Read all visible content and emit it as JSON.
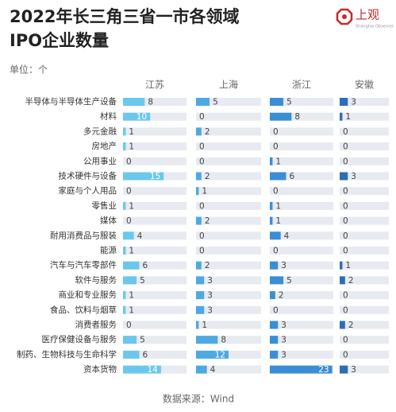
{
  "brand": {
    "name": "上观",
    "tagline": "Shanghai Observer"
  },
  "chart_data": {
    "type": "bar",
    "title": [
      "2022年长三角三省一市各领域",
      "IPO企业数量"
    ],
    "unit_label": "单位：个",
    "source": "数据来源：Wind",
    "categories": [
      "半导体与半导体生产设备",
      "材料",
      "多元金融",
      "房地产",
      "公用事业",
      "技术硬件与设备",
      "家庭与个人用品",
      "零售业",
      "媒体",
      "耐用消费品与服装",
      "能源",
      "汽车与汽车零部件",
      "软件与服务",
      "商业和专业服务",
      "食品、饮料与烟草",
      "消费者服务",
      "医疗保健设备与服务",
      "制药、生物科技与生命科学",
      "资本货物"
    ],
    "series": [
      {
        "name": "江苏",
        "color": "#6cc7ec",
        "values": [
          8,
          10,
          1,
          1,
          0,
          15,
          0,
          1,
          0,
          4,
          1,
          6,
          5,
          1,
          1,
          0,
          5,
          6,
          14
        ]
      },
      {
        "name": "上海",
        "color": "#4ea9e1",
        "values": [
          5,
          0,
          2,
          0,
          0,
          2,
          1,
          0,
          2,
          0,
          0,
          2,
          3,
          3,
          3,
          1,
          8,
          12,
          4
        ]
      },
      {
        "name": "浙江",
        "color": "#3b8ed6",
        "values": [
          5,
          8,
          0,
          0,
          1,
          6,
          0,
          1,
          1,
          4,
          0,
          3,
          5,
          2,
          0,
          3,
          3,
          3,
          23
        ]
      },
      {
        "name": "安徽",
        "color": "#2e6db6",
        "values": [
          3,
          1,
          0,
          0,
          0,
          3,
          0,
          0,
          0,
          0,
          0,
          1,
          2,
          0,
          0,
          2,
          0,
          0,
          3
        ]
      }
    ],
    "xlim": [
      0,
      24
    ]
  }
}
